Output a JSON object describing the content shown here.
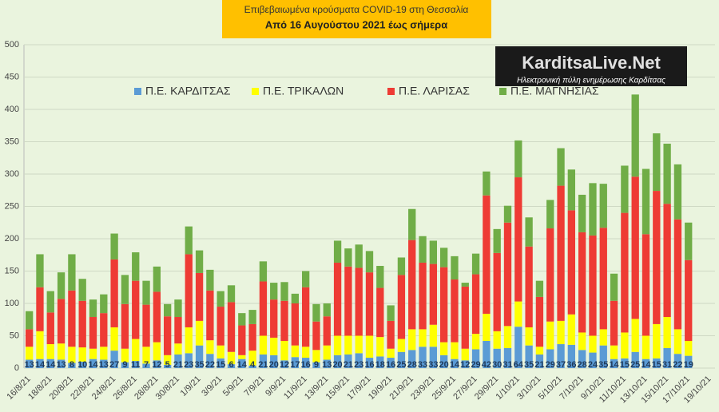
{
  "chart_data": {
    "type": "stacked-bar",
    "title": "Επιβεβαιωμένα κρούσματα COVID-19 στη Θεσσαλία",
    "subtitle": "Από 16 Αυγούστου 2021 έως σήμερα",
    "annotations": [
      "KarditsaLive.Net",
      "Ηλεκτρονική πύλη ενημέρωσης Καρδίτσας"
    ],
    "categories": [
      "16/8/21",
      null,
      "18/8/21",
      null,
      "20/8/21",
      null,
      "22/8/21",
      null,
      "24/8/21",
      null,
      "26/8/21",
      null,
      "28/8/21",
      null,
      "30/8/21",
      null,
      "1/9/21",
      null,
      "3/9/21",
      null,
      "5/9/21",
      null,
      "7/9/21",
      null,
      "9/9/21",
      null,
      "11/9/21",
      null,
      "13/9/21",
      null,
      "15/9/21",
      null,
      "17/9/21",
      null,
      "19/9/21",
      null,
      "21/9/21",
      null,
      "23/9/21",
      null,
      "25/9/21",
      null,
      "27/9/21",
      null,
      "29/9/21",
      null,
      "1/10/21",
      null,
      "3/10/21",
      null,
      "5/10/21",
      null,
      "7/10/21",
      null,
      "9/10/21",
      null,
      "11/10/21",
      null,
      "13/10/21",
      null,
      "15/10/21",
      null,
      "17/10/21",
      null,
      "19/10/21"
    ],
    "series": [
      {
        "name": "Π.Ε. ΚΑΡΔΙΤΣΑΣ",
        "color": "#5b9bd5",
        "labels": true,
        "values": [
          13,
          14,
          14,
          13,
          8,
          10,
          14,
          13,
          27,
          9,
          11,
          7,
          12,
          5,
          21,
          23,
          35,
          22,
          15,
          6,
          14,
          4,
          21,
          20,
          12,
          17,
          16,
          9,
          13,
          20,
          21,
          23,
          16,
          18,
          16,
          25,
          28,
          33,
          33,
          20,
          14,
          12,
          29,
          42,
          30,
          31,
          64,
          35,
          21,
          29,
          37,
          36,
          28,
          24,
          35,
          14,
          15,
          25,
          14,
          15,
          31,
          22,
          19,
          null,
          null
        ]
      },
      {
        "name": "Π.Ε. ΤΡΙΚΑΛΩΝ",
        "color": "#ffff00",
        "values": [
          20,
          43,
          23,
          25,
          25,
          22,
          16,
          20,
          36,
          21,
          34,
          26,
          28,
          15,
          17,
          40,
          38,
          21,
          20,
          19,
          6,
          23,
          29,
          27,
          30,
          18,
          17,
          19,
          22,
          30,
          29,
          27,
          34,
          30,
          14,
          20,
          32,
          27,
          34,
          20,
          26,
          18,
          24,
          42,
          27,
          34,
          39,
          28,
          12,
          43,
          36,
          47,
          27,
          26,
          25,
          21,
          40,
          51,
          36,
          53,
          48,
          38,
          23,
          null,
          null
        ]
      },
      {
        "name": "Π.Ε. ΛΑΡΙΣΑΣ",
        "color": "#ee3b34",
        "values": [
          27,
          68,
          49,
          69,
          87,
          72,
          49,
          52,
          105,
          69,
          90,
          65,
          78,
          60,
          41,
          113,
          74,
          77,
          60,
          77,
          46,
          41,
          84,
          59,
          62,
          65,
          92,
          44,
          45,
          113,
          107,
          105,
          98,
          76,
          43,
          99,
          138,
          103,
          94,
          116,
          97,
          96,
          92,
          183,
          121,
          160,
          192,
          125,
          77,
          144,
          209,
          161,
          155,
          155,
          157,
          69,
          185,
          220,
          157,
          206,
          175,
          170,
          125,
          null,
          null
        ]
      },
      {
        "name": "Π.Ε. ΜΑΓΝΗΣΙΑΣ",
        "color": "#70ad47",
        "values": [
          28,
          51,
          33,
          41,
          56,
          34,
          27,
          29,
          40,
          45,
          44,
          37,
          39,
          19,
          27,
          43,
          35,
          32,
          24,
          26,
          19,
          22,
          31,
          26,
          29,
          15,
          25,
          27,
          20,
          34,
          28,
          36,
          33,
          34,
          24,
          27,
          48,
          41,
          36,
          30,
          36,
          6,
          32,
          37,
          37,
          26,
          57,
          45,
          25,
          44,
          58,
          63,
          58,
          81,
          68,
          42,
          73,
          127,
          101,
          89,
          93,
          85,
          58,
          null,
          null
        ]
      }
    ],
    "ylim": [
      0,
      500
    ],
    "yticks": [
      0,
      50,
      100,
      150,
      200,
      250,
      300,
      350,
      400,
      450,
      500
    ],
    "grid": true,
    "legend": "top"
  }
}
